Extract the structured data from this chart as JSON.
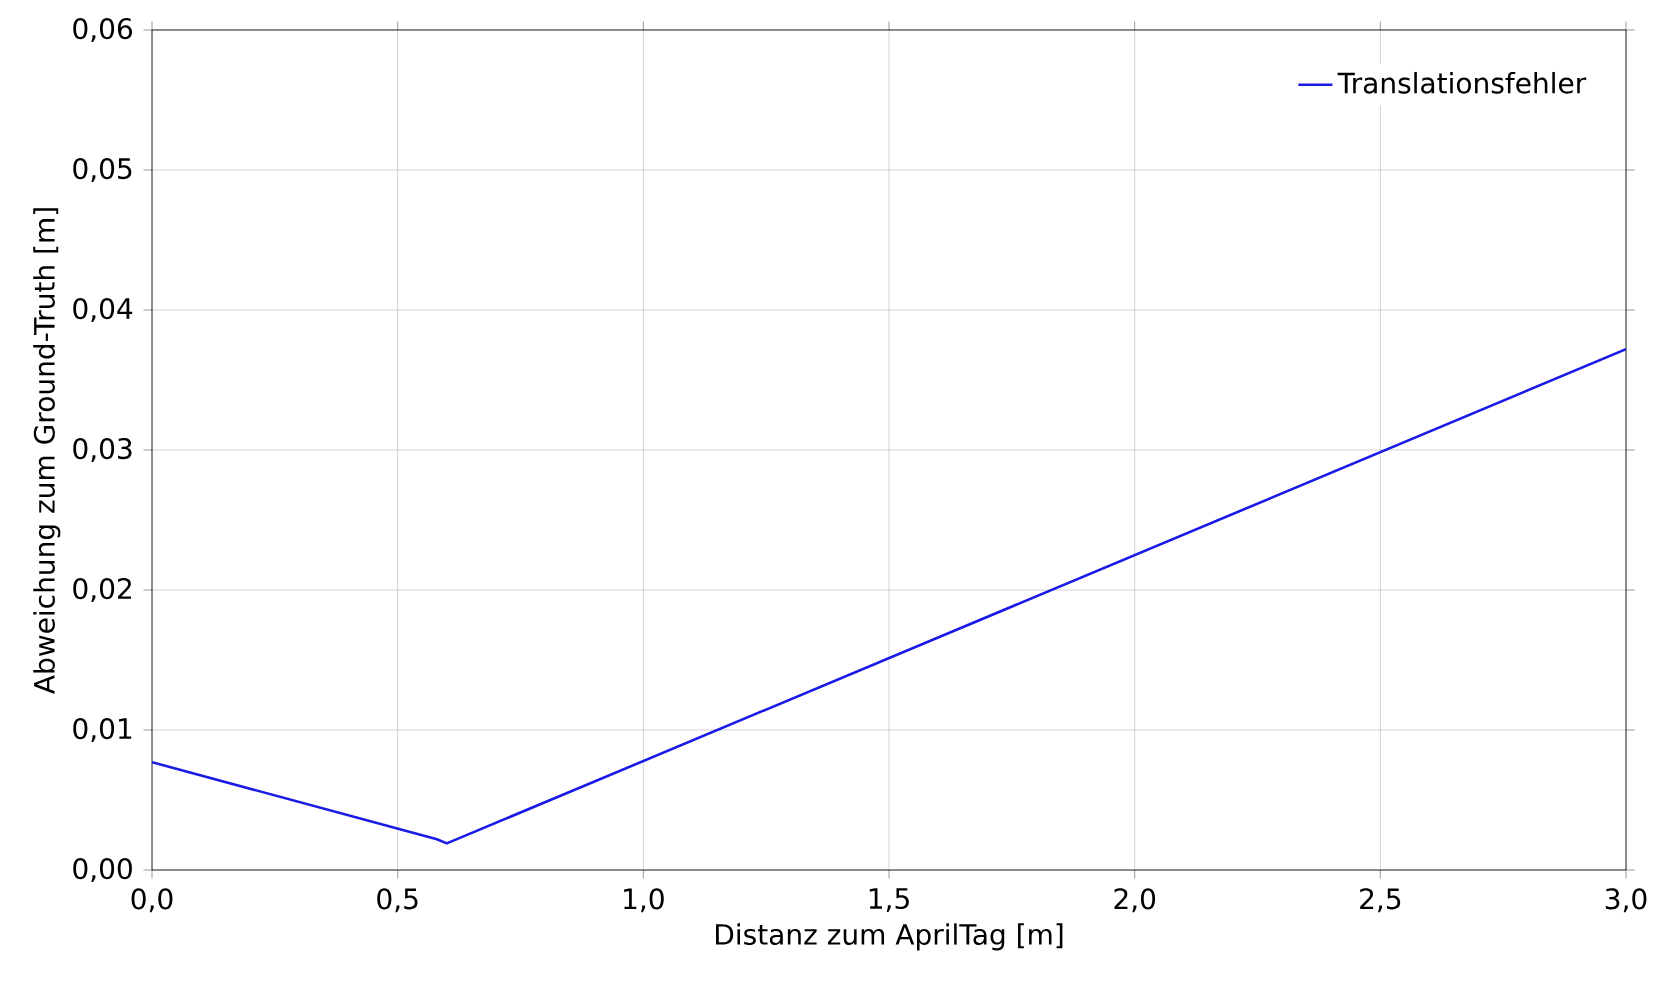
{
  "chart_data": {
    "type": "line",
    "xlabel": "Distanz zum AprilTag [m]",
    "ylabel": "Abweichung zum Ground-Truth [m]",
    "x": [
      0,
      0.58,
      0.6,
      3.0
    ],
    "series": [
      {
        "name": "Translationsfehler",
        "color": "#1a1ae6",
        "values": [
          0.0077,
          0.0022,
          0.0019,
          0.0372
        ]
      }
    ],
    "xlim": [
      0,
      3.0
    ],
    "ylim": [
      0,
      0.06
    ],
    "xticks": [
      {
        "value": 0,
        "label": "0,0"
      },
      {
        "value": 0.5,
        "label": "0,5"
      },
      {
        "value": 1.0,
        "label": "1,0"
      },
      {
        "value": 1.5,
        "label": "1,5"
      },
      {
        "value": 2.0,
        "label": "2,0"
      },
      {
        "value": 2.5,
        "label": "2,5"
      },
      {
        "value": 3.0,
        "label": "3,0"
      }
    ],
    "yticks": [
      {
        "value": 0,
        "label": "0,00"
      },
      {
        "value": 0.01,
        "label": "0,01"
      },
      {
        "value": 0.02,
        "label": "0,02"
      },
      {
        "value": 0.03,
        "label": "0,03"
      },
      {
        "value": 0.04,
        "label": "0,04"
      },
      {
        "value": 0.05,
        "label": "0,05"
      },
      {
        "value": 0.06,
        "label": "0,06"
      }
    ],
    "grid": true,
    "legend": "top right",
    "marker": "none",
    "line_style": "solid"
  }
}
